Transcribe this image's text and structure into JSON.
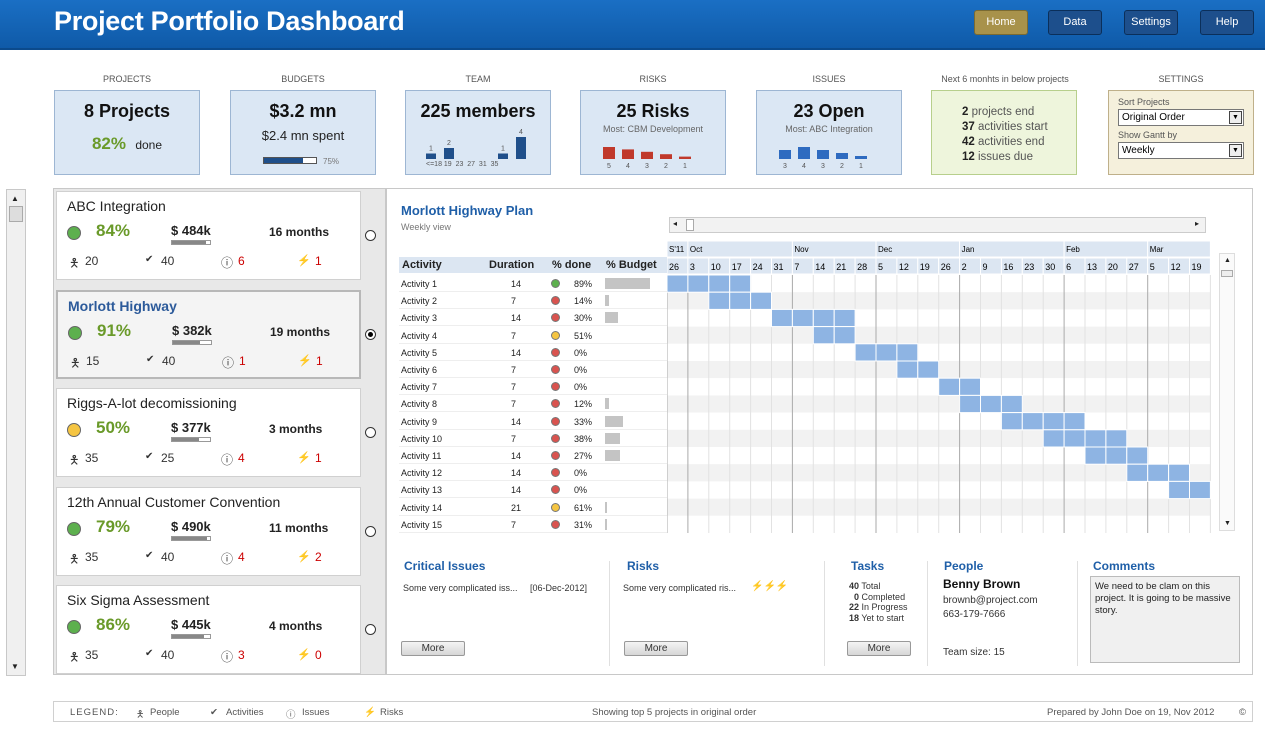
{
  "app": {
    "title": "Project Portfolio Dashboard"
  },
  "nav": {
    "home": "Home",
    "data": "Data",
    "settings": "Settings",
    "help": "Help"
  },
  "kpi": {
    "projects": {
      "label": "PROJECTS",
      "main": "8 Projects",
      "pct": "82%",
      "pct_label": "done"
    },
    "budgets": {
      "label": "BUDGETS",
      "main": "$3.2 mn",
      "spent": "$2.4 mn spent",
      "bar_pct": "75%",
      "bar_fraction": 0.75
    },
    "team": {
      "label": "TEAM",
      "main": "225 members",
      "bar_labels": [
        "1",
        "2",
        "",
        "",
        "1",
        "4"
      ],
      "bar_values": [
        1,
        2,
        0,
        0,
        1,
        4
      ],
      "axis": "<=18 19  23  27  31  35"
    },
    "risks": {
      "label": "RISKS",
      "main": "25 Risks",
      "most": "Most: CBM Development",
      "bar_values": [
        5,
        4,
        3,
        2,
        1
      ],
      "bar_labels": [
        "5",
        "4",
        "3",
        "2",
        "1"
      ]
    },
    "issues": {
      "label": "ISSUES",
      "main": "23 Open",
      "most": "Most: ABC Integration",
      "bar_values": [
        3,
        4,
        3,
        2,
        1
      ],
      "bar_labels": [
        "3",
        "4",
        "3",
        "2",
        "1"
      ]
    },
    "next6": {
      "label": "Next 6 monhts in below projects",
      "lines": [
        {
          "n": "2",
          "t": "projects end"
        },
        {
          "n": "37",
          "t": "activities start"
        },
        {
          "n": "42",
          "t": "activities end"
        },
        {
          "n": "12",
          "t": "issues due"
        }
      ]
    },
    "settings": {
      "label": "SETTINGS",
      "sort_label": "Sort Projects",
      "sort_value": "Original Order",
      "gantt_label": "Show Gantt by",
      "gantt_value": "Weekly"
    }
  },
  "projects": [
    {
      "name": "ABC Integration",
      "pct": "84%",
      "status": "green",
      "budget": "$ 484k",
      "budget_fraction": 0.9,
      "months": "16 months",
      "people": "20",
      "activities": "40",
      "issues": "6",
      "risks": "1",
      "selected": false
    },
    {
      "name": "Morlott Highway",
      "pct": "91%",
      "status": "green",
      "budget": "$ 382k",
      "budget_fraction": 0.7,
      "months": "19 months",
      "people": "15",
      "activities": "40",
      "issues": "1",
      "risks": "1",
      "selected": true
    },
    {
      "name": "Riggs-A-lot decomissioning",
      "pct": "50%",
      "status": "yellow",
      "budget": "$ 377k",
      "budget_fraction": 0.7,
      "months": "3 months",
      "people": "35",
      "activities": "25",
      "issues": "4",
      "risks": "1",
      "selected": false
    },
    {
      "name": "12th Annual Customer Convention",
      "pct": "79%",
      "status": "green",
      "budget": "$ 490k",
      "budget_fraction": 0.92,
      "months": "11 months",
      "people": "35",
      "activities": "40",
      "issues": "4",
      "risks": "2",
      "selected": false
    },
    {
      "name": "Six Sigma Assessment",
      "pct": "86%",
      "status": "green",
      "budget": "$ 445k",
      "budget_fraction": 0.85,
      "months": "4 months",
      "people": "35",
      "activities": "40",
      "issues": "3",
      "risks": "0",
      "selected": false
    }
  ],
  "gantt": {
    "title": "Morlott Highway Plan",
    "subtitle": "Weekly view",
    "headers": {
      "activity": "Activity",
      "duration": "Duration",
      "pct": "% done",
      "budget": "% Budget"
    },
    "months": [
      "S'11",
      "Oct",
      "Nov",
      "Dec",
      "Jan",
      "Feb",
      "Mar"
    ],
    "weeks": [
      "26",
      "3",
      "10",
      "17",
      "24",
      "31",
      "7",
      "14",
      "21",
      "28",
      "5",
      "12",
      "19",
      "26",
      "2",
      "9",
      "16",
      "23",
      "30",
      "6",
      "13",
      "20",
      "27",
      "5",
      "12",
      "19"
    ],
    "rows": [
      {
        "name": "Activity 1",
        "dur": "14",
        "pct": "89%",
        "status": "green",
        "budget": 0.9,
        "start": 0,
        "len": 4
      },
      {
        "name": "Activity 2",
        "dur": "7",
        "pct": "14%",
        "status": "red",
        "budget": 0.08,
        "start": 2,
        "len": 3
      },
      {
        "name": "Activity 3",
        "dur": "14",
        "pct": "30%",
        "status": "red",
        "budget": 0.25,
        "start": 5,
        "len": 4
      },
      {
        "name": "Activity 4",
        "dur": "7",
        "pct": "51%",
        "status": "yellow",
        "budget": 0,
        "start": 7,
        "len": 2
      },
      {
        "name": "Activity 5",
        "dur": "14",
        "pct": "0%",
        "status": "red",
        "budget": 0,
        "start": 9,
        "len": 3
      },
      {
        "name": "Activity 6",
        "dur": "7",
        "pct": "0%",
        "status": "red",
        "budget": 0,
        "start": 11,
        "len": 2
      },
      {
        "name": "Activity 7",
        "dur": "7",
        "pct": "0%",
        "status": "red",
        "budget": 0,
        "start": 13,
        "len": 2
      },
      {
        "name": "Activity 8",
        "dur": "7",
        "pct": "12%",
        "status": "red",
        "budget": 0.08,
        "start": 14,
        "len": 3
      },
      {
        "name": "Activity 9",
        "dur": "14",
        "pct": "33%",
        "status": "red",
        "budget": 0.35,
        "start": 16,
        "len": 4
      },
      {
        "name": "Activity 10",
        "dur": "7",
        "pct": "38%",
        "status": "red",
        "budget": 0.3,
        "start": 18,
        "len": 4
      },
      {
        "name": "Activity 11",
        "dur": "14",
        "pct": "27%",
        "status": "red",
        "budget": 0.3,
        "start": 20,
        "len": 3
      },
      {
        "name": "Activity 12",
        "dur": "14",
        "pct": "0%",
        "status": "red",
        "budget": 0,
        "start": 22,
        "len": 3
      },
      {
        "name": "Activity 13",
        "dur": "14",
        "pct": "0%",
        "status": "red",
        "budget": 0,
        "start": 24,
        "len": 2
      },
      {
        "name": "Activity 14",
        "dur": "21",
        "pct": "61%",
        "status": "yellow",
        "budget": 0.03,
        "start": 0,
        "len": 0
      },
      {
        "name": "Activity 15",
        "dur": "7",
        "pct": "31%",
        "status": "red",
        "budget": 0.03,
        "start": 0,
        "len": 0
      }
    ]
  },
  "details": {
    "critical": {
      "title": "Critical Issues",
      "text": "Some very complicated iss...",
      "date": "[06-Dec-2012]",
      "more": "More"
    },
    "risks": {
      "title": "Risks",
      "text": "Some very complicated ris...",
      "more": "More"
    },
    "tasks": {
      "title": "Tasks",
      "items": [
        {
          "n": "40",
          "t": "Total"
        },
        {
          "n": "0",
          "t": "Completed"
        },
        {
          "n": "22",
          "t": "In Progress"
        },
        {
          "n": "18",
          "t": "Yet to start"
        }
      ],
      "more": "More"
    },
    "people": {
      "title": "People",
      "name": "Benny Brown",
      "email": "brownb@project.com",
      "phone": "663-179-7666",
      "team": "Team size: 15"
    },
    "comments": {
      "title": "Comments",
      "text": "We need to be clam on this project. It is going to be massive story."
    }
  },
  "footer": {
    "legend": "LEGEND:",
    "people": "People",
    "activities": "Activities",
    "issues": "Issues",
    "risks": "Risks",
    "center": "Showing top 5 projects in original order",
    "right": "Prepared by John Doe on 19, Nov 2012"
  },
  "colors": {
    "green": "#5db04e",
    "yellow": "#f5c542",
    "red": "#d9534f",
    "gantt_bar": "#8eb4e3",
    "header": "#1a6fc4"
  }
}
